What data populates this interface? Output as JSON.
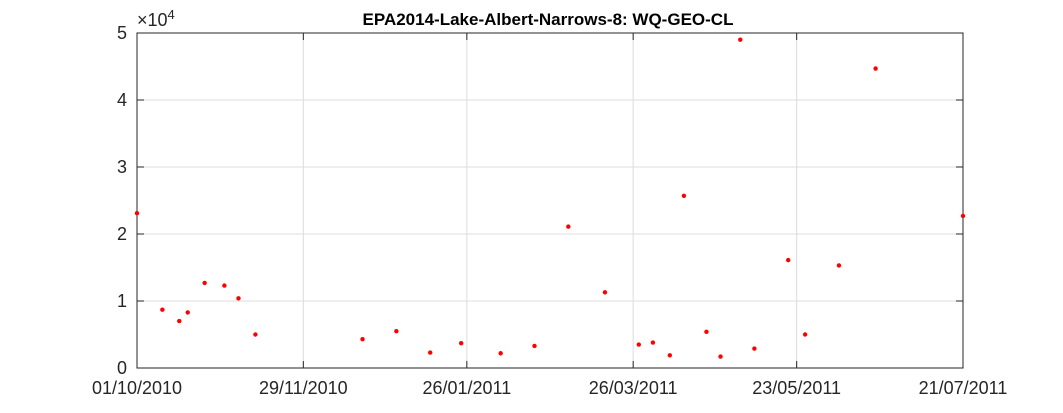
{
  "chart_data": {
    "type": "scatter",
    "title": "EPA2014-Lake-Albert-Narrows-8: WQ-GEO-CL",
    "xlabel": "",
    "ylabel": "",
    "x_axis": {
      "type": "date",
      "range": [
        "2010-10-01",
        "2011-07-21"
      ],
      "ticks": [
        {
          "date": "2010-10-01",
          "label": "01/10/2010"
        },
        {
          "date": "2010-11-29",
          "label": "29/11/2010"
        },
        {
          "date": "2011-01-26",
          "label": "26/01/2011"
        },
        {
          "date": "2011-03-26",
          "label": "26/03/2011"
        },
        {
          "date": "2011-05-23",
          "label": "23/05/2011"
        },
        {
          "date": "2011-07-21",
          "label": "21/07/2011"
        }
      ]
    },
    "y_axis": {
      "range": [
        0,
        50000
      ],
      "ticks": [
        0,
        10000,
        20000,
        30000,
        40000,
        50000
      ],
      "tick_labels": [
        "0",
        "1",
        "2",
        "3",
        "4",
        "5"
      ],
      "exponent_label": {
        "base": "×10",
        "power": "4"
      }
    },
    "grid": true,
    "marker_color": "#ff0000",
    "points": [
      {
        "x": "2010-10-01",
        "y": 23100
      },
      {
        "x": "2010-10-10",
        "y": 8700
      },
      {
        "x": "2010-10-16",
        "y": 7000
      },
      {
        "x": "2010-10-19",
        "y": 8300
      },
      {
        "x": "2010-10-25",
        "y": 12700
      },
      {
        "x": "2010-11-01",
        "y": 12300
      },
      {
        "x": "2010-11-06",
        "y": 10400
      },
      {
        "x": "2010-11-12",
        "y": 5000
      },
      {
        "x": "2010-12-20",
        "y": 4300
      },
      {
        "x": "2011-01-01",
        "y": 5500
      },
      {
        "x": "2011-01-13",
        "y": 2300
      },
      {
        "x": "2011-01-24",
        "y": 3700
      },
      {
        "x": "2011-02-07",
        "y": 2200
      },
      {
        "x": "2011-02-19",
        "y": 3300
      },
      {
        "x": "2011-03-03",
        "y": 21100
      },
      {
        "x": "2011-03-16",
        "y": 11300
      },
      {
        "x": "2011-03-28",
        "y": 3500
      },
      {
        "x": "2011-04-02",
        "y": 3800
      },
      {
        "x": "2011-04-08",
        "y": 1900
      },
      {
        "x": "2011-04-13",
        "y": 25700
      },
      {
        "x": "2011-04-21",
        "y": 5400
      },
      {
        "x": "2011-04-26",
        "y": 1700
      },
      {
        "x": "2011-05-03",
        "y": 49000
      },
      {
        "x": "2011-05-08",
        "y": 2900
      },
      {
        "x": "2011-05-20",
        "y": 16100
      },
      {
        "x": "2011-05-26",
        "y": 5000
      },
      {
        "x": "2011-06-07",
        "y": 15300
      },
      {
        "x": "2011-06-20",
        "y": 44700
      },
      {
        "x": "2011-07-21",
        "y": 22700
      }
    ]
  }
}
